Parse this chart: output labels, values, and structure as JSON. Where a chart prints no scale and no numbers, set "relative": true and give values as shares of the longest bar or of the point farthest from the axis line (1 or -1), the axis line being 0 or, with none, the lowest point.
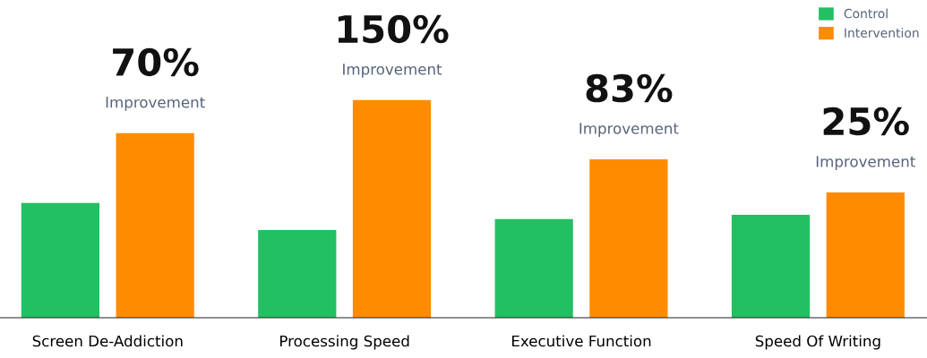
{
  "chart_data": {
    "type": "bar",
    "relative": true,
    "categories": [
      "Screen De-Addiction",
      "Processing Speed",
      "Executive Function",
      "Speed Of Writing"
    ],
    "series": [
      {
        "name": "Control",
        "color": "#22c063",
        "values": [
          0.527,
          0.403,
          0.453,
          0.473
        ]
      },
      {
        "name": "Intervention",
        "color": "#ff8c00",
        "values": [
          0.848,
          1.0,
          0.728,
          0.576
        ]
      }
    ],
    "annotations": [
      "70%\nImprovement",
      "150%\nImprovement",
      "83%\nImprovement",
      "25%\nImprovement"
    ],
    "legend": "top right",
    "grid": false
  }
}
